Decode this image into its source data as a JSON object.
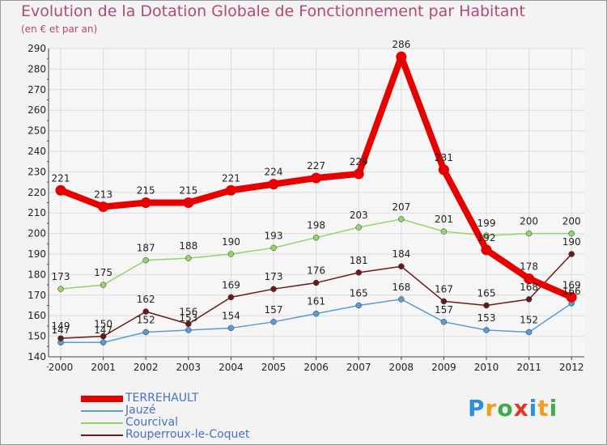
{
  "header": {
    "title": "Evolution de la Dotation Globale de Fonctionnement par Habitant",
    "subtitle": "(en € et par an)"
  },
  "chart_data": {
    "type": "line",
    "title": "Evolution de la Dotation Globale de Fonctionnement par Habitant",
    "subtitle": "(en € et par an)",
    "xlabel": "",
    "ylabel": "",
    "ylim": [
      140,
      290
    ],
    "yticks": [
      140,
      150,
      160,
      170,
      180,
      190,
      200,
      210,
      220,
      230,
      240,
      250,
      260,
      270,
      280,
      290
    ],
    "grid": true,
    "categories": [
      "2000",
      "2001",
      "2002",
      "2003",
      "2004",
      "2005",
      "2006",
      "2007",
      "2008",
      "2009",
      "2010",
      "2011",
      "2012"
    ],
    "series": [
      {
        "name": "TERREHAULT",
        "color": "#e60000",
        "values": [
          221,
          213,
          215,
          215,
          221,
          224,
          227,
          229,
          286,
          231,
          192,
          178,
          169
        ]
      },
      {
        "name": "Jauzé",
        "color": "#5b9bd5",
        "values": [
          147,
          147,
          152,
          153,
          154,
          157,
          161,
          165,
          168,
          157,
          153,
          152,
          166
        ]
      },
      {
        "name": "Courcival",
        "color": "#92d36e",
        "values": [
          173,
          175,
          187,
          188,
          190,
          193,
          198,
          203,
          207,
          201,
          199,
          200,
          200
        ]
      },
      {
        "name": "Rouperroux-le-Coquet",
        "color": "#6b1a1a",
        "values": [
          149,
          150,
          162,
          156,
          169,
          173,
          176,
          181,
          184,
          167,
          165,
          168,
          190
        ]
      }
    ],
    "legend_position": "bottom-left"
  },
  "logo": {
    "letters": [
      "P",
      "r",
      "o",
      "x",
      "i",
      "t",
      "i"
    ],
    "colors": [
      "#2f8fd8",
      "#f0a020",
      "#3fae49",
      "#e2352a",
      "#2f8fd8",
      "#f0a020",
      "#3fae49"
    ]
  }
}
